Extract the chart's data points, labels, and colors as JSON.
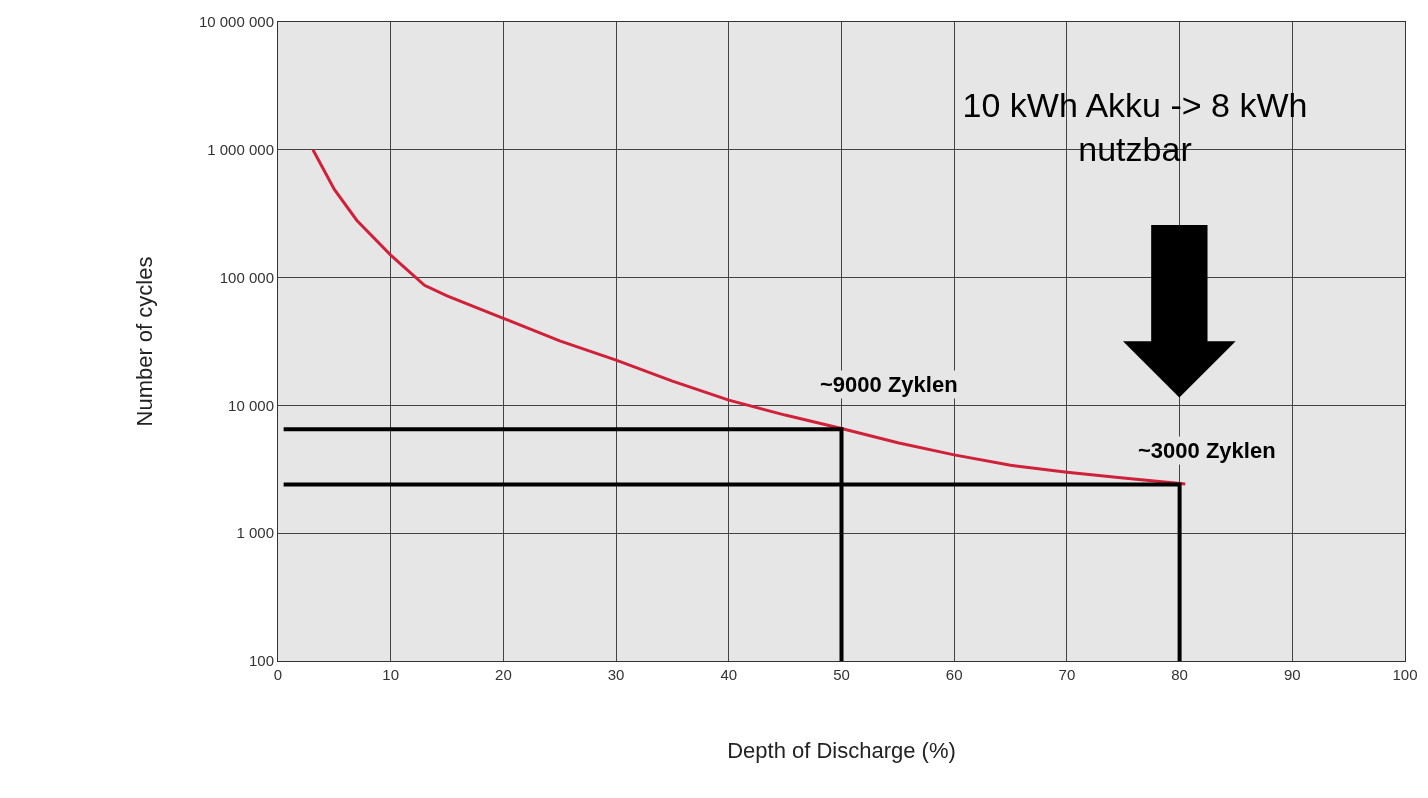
{
  "chart_data": {
    "type": "line",
    "xlabel": "Depth of Discharge (%)",
    "ylabel": "Number of cycles",
    "log": "y",
    "grid": true,
    "marker": "none",
    "line_style": "solid",
    "xlim": [
      0,
      100
    ],
    "xticks": [
      0,
      10,
      20,
      30,
      40,
      50,
      60,
      70,
      80,
      90,
      100
    ],
    "ylim": [
      100,
      10000000
    ],
    "yticks": [
      {
        "value": 100,
        "label": "100"
      },
      {
        "value": 1000,
        "label": "1 000"
      },
      {
        "value": 10000,
        "label": "10 000"
      },
      {
        "value": 100000,
        "label": "100 000"
      },
      {
        "value": 1000000,
        "label": "1 000 000"
      },
      {
        "value": 10000000,
        "label": "10 000 000"
      }
    ],
    "series": [
      {
        "color": "#d0213a",
        "x": [
          3.1,
          5,
          7,
          10,
          13,
          15,
          20,
          25,
          30,
          35,
          40,
          45,
          50,
          55,
          60,
          65,
          70,
          75,
          80.5
        ],
        "values": [
          1000000,
          490000,
          280000,
          150000,
          87000,
          72000,
          48000,
          32000,
          22600,
          15500,
          11000,
          8400,
          6600,
          5100,
          4100,
          3400,
          3000,
          2700,
          2430
        ]
      },
      {
        "color": "#000000",
        "x": [
          0.5,
          50,
          50
        ],
        "values": [
          6500,
          6500,
          100
        ]
      },
      {
        "color": "#000000",
        "x": [
          0.5,
          80,
          80
        ],
        "values": [
          2400,
          2400,
          100
        ]
      }
    ],
    "annotations": [
      "10 kWh Akku -> 8 kWh nutzbar",
      {
        "text": "~9000 Zyklen",
        "x": 50,
        "y": 6500
      },
      {
        "text": "~3000 Zyklen",
        "x": 80,
        "y": 2400
      }
    ]
  }
}
